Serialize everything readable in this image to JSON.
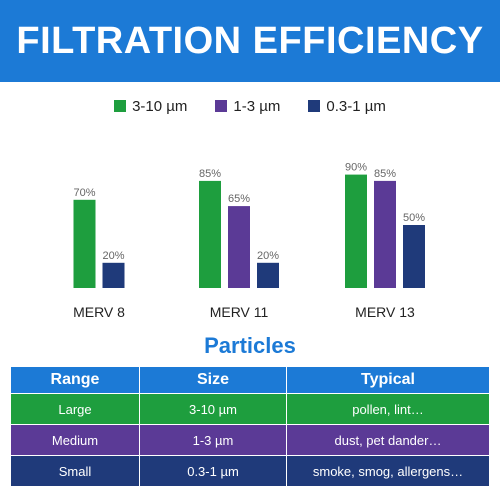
{
  "banner": {
    "title": "FILTRATION EFFICIENCY"
  },
  "chart_data": {
    "type": "bar",
    "categories": [
      "MERV 8",
      "MERV 11",
      "MERV 13"
    ],
    "series": [
      {
        "name": "3-10 µm",
        "values": [
          70,
          85,
          90
        ],
        "labels": [
          "70%",
          "85%",
          "90%"
        ],
        "color": "#1e9e3e"
      },
      {
        "name": "1-3 µm",
        "values": [
          null,
          65,
          85
        ],
        "labels": [
          "",
          "65%",
          "85%"
        ],
        "color": "#5b3a96"
      },
      {
        "name": "0.3-1 µm",
        "values": [
          20,
          20,
          50
        ],
        "labels": [
          "20%",
          "20%",
          "50%"
        ],
        "color": "#1f3a7a"
      }
    ],
    "ylim": [
      0,
      100
    ],
    "legend": "top",
    "grid": false
  },
  "particles": {
    "title": "Particles",
    "headers": [
      "Range",
      "Size",
      "Typical"
    ],
    "rows": [
      {
        "range": "Large",
        "size": "3-10 µm",
        "typical": "pollen, lint…",
        "color": "#1e9e3e"
      },
      {
        "range": "Medium",
        "size": "1-3 µm",
        "typical": "dust, pet dander…",
        "color": "#5b3a96"
      },
      {
        "range": "Small",
        "size": "0.3-1 µm",
        "typical": "smoke, smog, allergens…",
        "color": "#1f3a7a"
      }
    ]
  }
}
